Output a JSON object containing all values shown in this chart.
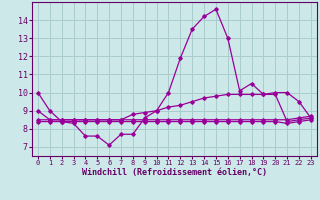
{
  "background_color": "#cce8e8",
  "grid_color": "#aacccc",
  "line_color": "#990099",
  "x_label": "Windchill (Refroidissement éolien,°C)",
  "xlim": [
    -0.5,
    23.5
  ],
  "ylim": [
    6.5,
    15.0
  ],
  "yticks": [
    7,
    8,
    9,
    10,
    11,
    12,
    13,
    14
  ],
  "xticks": [
    0,
    1,
    2,
    3,
    4,
    5,
    6,
    7,
    8,
    9,
    10,
    11,
    12,
    13,
    14,
    15,
    16,
    17,
    18,
    19,
    20,
    21,
    22,
    23
  ],
  "s1_x": [
    0,
    1,
    2,
    3,
    4,
    5,
    6,
    7,
    8,
    9,
    10,
    11,
    12,
    13,
    14,
    15,
    16,
    17,
    18,
    19,
    20,
    21,
    22,
    23
  ],
  "s1_y": [
    10.0,
    9.0,
    8.4,
    8.3,
    7.6,
    7.6,
    7.1,
    7.7,
    7.7,
    8.6,
    9.0,
    10.0,
    11.9,
    13.5,
    14.2,
    14.6,
    13.0,
    10.1,
    10.5,
    9.9,
    10.0,
    10.0,
    9.5,
    8.6
  ],
  "s2_x": [
    0,
    1,
    2,
    3,
    4,
    5,
    6,
    7,
    8,
    9,
    10,
    11,
    12,
    13,
    14,
    15,
    16,
    17,
    18,
    19,
    20,
    21,
    22,
    23
  ],
  "s2_y": [
    9.0,
    8.5,
    8.5,
    8.5,
    8.5,
    8.5,
    8.5,
    8.5,
    8.8,
    8.9,
    9.0,
    9.2,
    9.3,
    9.5,
    9.7,
    9.8,
    9.9,
    9.9,
    9.9,
    9.9,
    9.9,
    8.4,
    8.5,
    8.6
  ],
  "s3_x": [
    0,
    1,
    2,
    3,
    4,
    5,
    6,
    7,
    8,
    9,
    10,
    11,
    12,
    13,
    14,
    15,
    16,
    17,
    18,
    19,
    20,
    21,
    22,
    23
  ],
  "s3_y": [
    8.5,
    8.5,
    8.5,
    8.5,
    8.5,
    8.5,
    8.5,
    8.5,
    8.5,
    8.5,
    8.5,
    8.5,
    8.5,
    8.5,
    8.5,
    8.5,
    8.5,
    8.5,
    8.5,
    8.5,
    8.5,
    8.5,
    8.6,
    8.7
  ],
  "s4_x": [
    0,
    1,
    2,
    3,
    4,
    5,
    6,
    7,
    8,
    9,
    10,
    11,
    12,
    13,
    14,
    15,
    16,
    17,
    18,
    19,
    20,
    21,
    22,
    23
  ],
  "s4_y": [
    8.4,
    8.4,
    8.4,
    8.4,
    8.4,
    8.4,
    8.4,
    8.4,
    8.4,
    8.4,
    8.4,
    8.4,
    8.4,
    8.4,
    8.4,
    8.4,
    8.4,
    8.4,
    8.4,
    8.4,
    8.4,
    8.3,
    8.4,
    8.5
  ]
}
